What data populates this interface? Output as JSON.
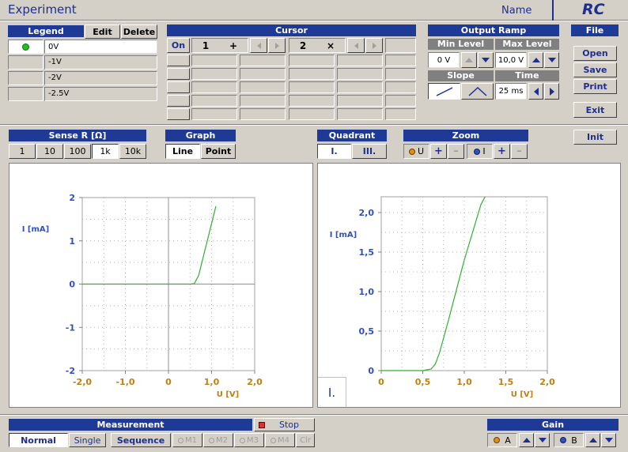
{
  "titlebar": {
    "title": "Experiment",
    "name_label": "Name",
    "logo": "RC"
  },
  "legend": {
    "title": "Legend",
    "edit": "Edit",
    "delete": "Delete",
    "rows": [
      "0V",
      "-1V",
      "-2V",
      "-2.5V"
    ],
    "active_color": "#20c020"
  },
  "cursor": {
    "title": "Cursor",
    "on": "On",
    "c1": "1",
    "c1_sym": "+",
    "c2": "2",
    "c2_sym": "×"
  },
  "output_ramp": {
    "title": "Output Ramp",
    "min_label": "Min Level",
    "max_label": "Max Level",
    "min_value": "0 V",
    "max_value": "10,0 V",
    "slope_label": "Slope",
    "time_label": "Time",
    "time_value": "25 ms"
  },
  "file": {
    "title": "File",
    "open": "Open",
    "save": "Save",
    "print": "Print",
    "exit": "Exit"
  },
  "sense": {
    "title": "Sense R  [Ω]",
    "options": [
      "1",
      "10",
      "100",
      "1k",
      "10k"
    ],
    "selected": "1k"
  },
  "graph": {
    "title": "Graph",
    "line": "Line",
    "point": "Point"
  },
  "quadrant": {
    "title": "Quadrant",
    "q1": "I.",
    "q3": "III."
  },
  "zoom": {
    "title": "Zoom",
    "u": "U",
    "i": "I",
    "plus": "+",
    "minus": "–",
    "u_color": "#e09010",
    "i_color": "#3050c0"
  },
  "init": "Init",
  "left_chart": {
    "xlabel": "U [V]",
    "ylabel": "I [mA]",
    "xticks": [
      "-2,0",
      "-1,0",
      "0",
      "1,0",
      "2,0"
    ],
    "yticks": [
      "2",
      "1",
      "0",
      "-1",
      "-2"
    ]
  },
  "right_chart": {
    "xlabel": "U [V]",
    "ylabel": "I [mA]",
    "xticks": [
      "0",
      "0,5",
      "1,0",
      "1,5",
      "2,0"
    ],
    "yticks": [
      "2,0",
      "1,5",
      "1,0",
      "0,5",
      "0"
    ],
    "quadrant_badge": "I."
  },
  "chart_data": [
    {
      "type": "line",
      "series": [
        {
          "values": [
            [
              -2.0,
              0
            ],
            [
              0.3,
              0
            ],
            [
              0.5,
              0
            ],
            [
              0.6,
              0.01
            ],
            [
              0.7,
              0.2
            ],
            [
              0.8,
              0.6
            ],
            [
              0.9,
              1.0
            ],
            [
              1.0,
              1.4
            ],
            [
              1.1,
              1.8
            ],
            [
              1.2,
              2.2
            ]
          ]
        }
      ],
      "xlim": [
        -2,
        2
      ],
      "ylim": [
        -2,
        2
      ],
      "grid": true,
      "line_color": "#30b030"
    },
    {
      "type": "line",
      "series": [
        {
          "values": [
            [
              0,
              0
            ],
            [
              0.5,
              0
            ],
            [
              0.6,
              0.02
            ],
            [
              0.65,
              0.08
            ],
            [
              0.7,
              0.22
            ],
            [
              0.8,
              0.6
            ],
            [
              0.9,
              1.0
            ],
            [
              1.0,
              1.4
            ],
            [
              1.1,
              1.75
            ],
            [
              1.2,
              2.1
            ],
            [
              1.25,
              2.2
            ]
          ]
        }
      ],
      "xlim": [
        0,
        2
      ],
      "ylim": [
        0,
        2.2
      ],
      "grid": true,
      "line_color": "#30b030"
    }
  ],
  "measurement": {
    "title": "Measurement",
    "stop": "Stop",
    "normal": "Normal",
    "single": "Single",
    "sequence": "Sequence",
    "m": [
      "M1",
      "M2",
      "M3",
      "M4"
    ],
    "clr": "Clr"
  },
  "gain": {
    "title": "Gain",
    "a": "A",
    "b": "B"
  },
  "colors": {
    "header": "#1f3a96",
    "axis_label": "#3050c0",
    "tick_x": "#c08010",
    "tick_y": "#3050c0",
    "stop_led": "#e03030"
  }
}
